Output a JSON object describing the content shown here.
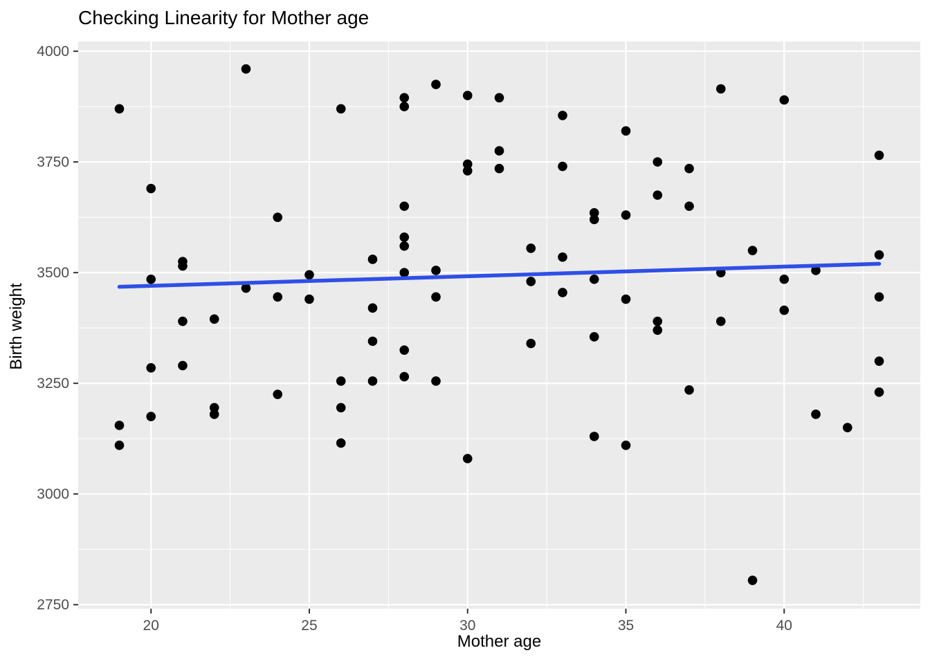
{
  "chart_data": {
    "type": "scatter",
    "title": "Checking Linearity for Mother age",
    "xlabel": "Mother age",
    "ylabel": "Birth weight",
    "x_ticks": [
      20,
      25,
      30,
      35,
      40
    ],
    "y_ticks": [
      2750,
      3000,
      3250,
      3500,
      3750,
      4000
    ],
    "x_minor_ticks": [
      22.5,
      27.5,
      32.5,
      37.5,
      42.5
    ],
    "y_minor_ticks": [
      2875,
      3125,
      3375,
      3625,
      3875
    ],
    "xlim": [
      17.7,
      44.3
    ],
    "ylim": [
      2741,
      4022
    ],
    "grid": "on",
    "legend": "none",
    "points": [
      [
        19,
        3870
      ],
      [
        19,
        3155
      ],
      [
        19,
        3110
      ],
      [
        20,
        3690
      ],
      [
        20,
        3485
      ],
      [
        20,
        3285
      ],
      [
        20,
        3175
      ],
      [
        21,
        3525
      ],
      [
        21,
        3515
      ],
      [
        21,
        3390
      ],
      [
        21,
        3290
      ],
      [
        22,
        3395
      ],
      [
        22,
        3195
      ],
      [
        22,
        3180
      ],
      [
        23,
        3960
      ],
      [
        23,
        3465
      ],
      [
        24,
        3625
      ],
      [
        24,
        3445
      ],
      [
        24,
        3225
      ],
      [
        25,
        3495
      ],
      [
        25,
        3440
      ],
      [
        26,
        3870
      ],
      [
        26,
        3255
      ],
      [
        26,
        3195
      ],
      [
        26,
        3115
      ],
      [
        27,
        3530
      ],
      [
        27,
        3420
      ],
      [
        27,
        3345
      ],
      [
        27,
        3255
      ],
      [
        28,
        3895
      ],
      [
        28,
        3875
      ],
      [
        28,
        3650
      ],
      [
        28,
        3580
      ],
      [
        28,
        3560
      ],
      [
        28,
        3500
      ],
      [
        28,
        3325
      ],
      [
        28,
        3265
      ],
      [
        29,
        3925
      ],
      [
        29,
        3505
      ],
      [
        29,
        3445
      ],
      [
        29,
        3255
      ],
      [
        30,
        3900
      ],
      [
        30,
        3745
      ],
      [
        30,
        3730
      ],
      [
        30,
        3080
      ],
      [
        31,
        3895
      ],
      [
        31,
        3775
      ],
      [
        31,
        3735
      ],
      [
        32,
        3555
      ],
      [
        32,
        3480
      ],
      [
        32,
        3340
      ],
      [
        33,
        3855
      ],
      [
        33,
        3740
      ],
      [
        33,
        3535
      ],
      [
        33,
        3455
      ],
      [
        34,
        3635
      ],
      [
        34,
        3620
      ],
      [
        34,
        3485
      ],
      [
        34,
        3355
      ],
      [
        34,
        3130
      ],
      [
        35,
        3820
      ],
      [
        35,
        3630
      ],
      [
        35,
        3440
      ],
      [
        35,
        3110
      ],
      [
        36,
        3750
      ],
      [
        36,
        3675
      ],
      [
        36,
        3390
      ],
      [
        36,
        3370
      ],
      [
        37,
        3735
      ],
      [
        37,
        3650
      ],
      [
        37,
        3235
      ],
      [
        38,
        3915
      ],
      [
        38,
        3500
      ],
      [
        38,
        3390
      ],
      [
        39,
        3550
      ],
      [
        39,
        2805
      ],
      [
        40,
        3890
      ],
      [
        40,
        3485
      ],
      [
        40,
        3415
      ],
      [
        41,
        3505
      ],
      [
        41,
        3180
      ],
      [
        42,
        3150
      ],
      [
        43,
        3765
      ],
      [
        43,
        3540
      ],
      [
        43,
        3445
      ],
      [
        43,
        3300
      ],
      [
        43,
        3230
      ]
    ],
    "trend_line": {
      "kind": "linear-smooth",
      "x0": 19,
      "y0": 3468,
      "x1": 43,
      "y1": 3520
    },
    "colors": {
      "panel_bg": "#EBEBEB",
      "grid_major": "#FFFFFF",
      "grid_minor": "#FFFFFF",
      "point": "#000000",
      "trend": "#2F4FE6",
      "tick_label": "#4D4D4D",
      "tick_mark": "#333333",
      "title_text": "#000000",
      "page_bg": "#FFFFFF"
    }
  }
}
